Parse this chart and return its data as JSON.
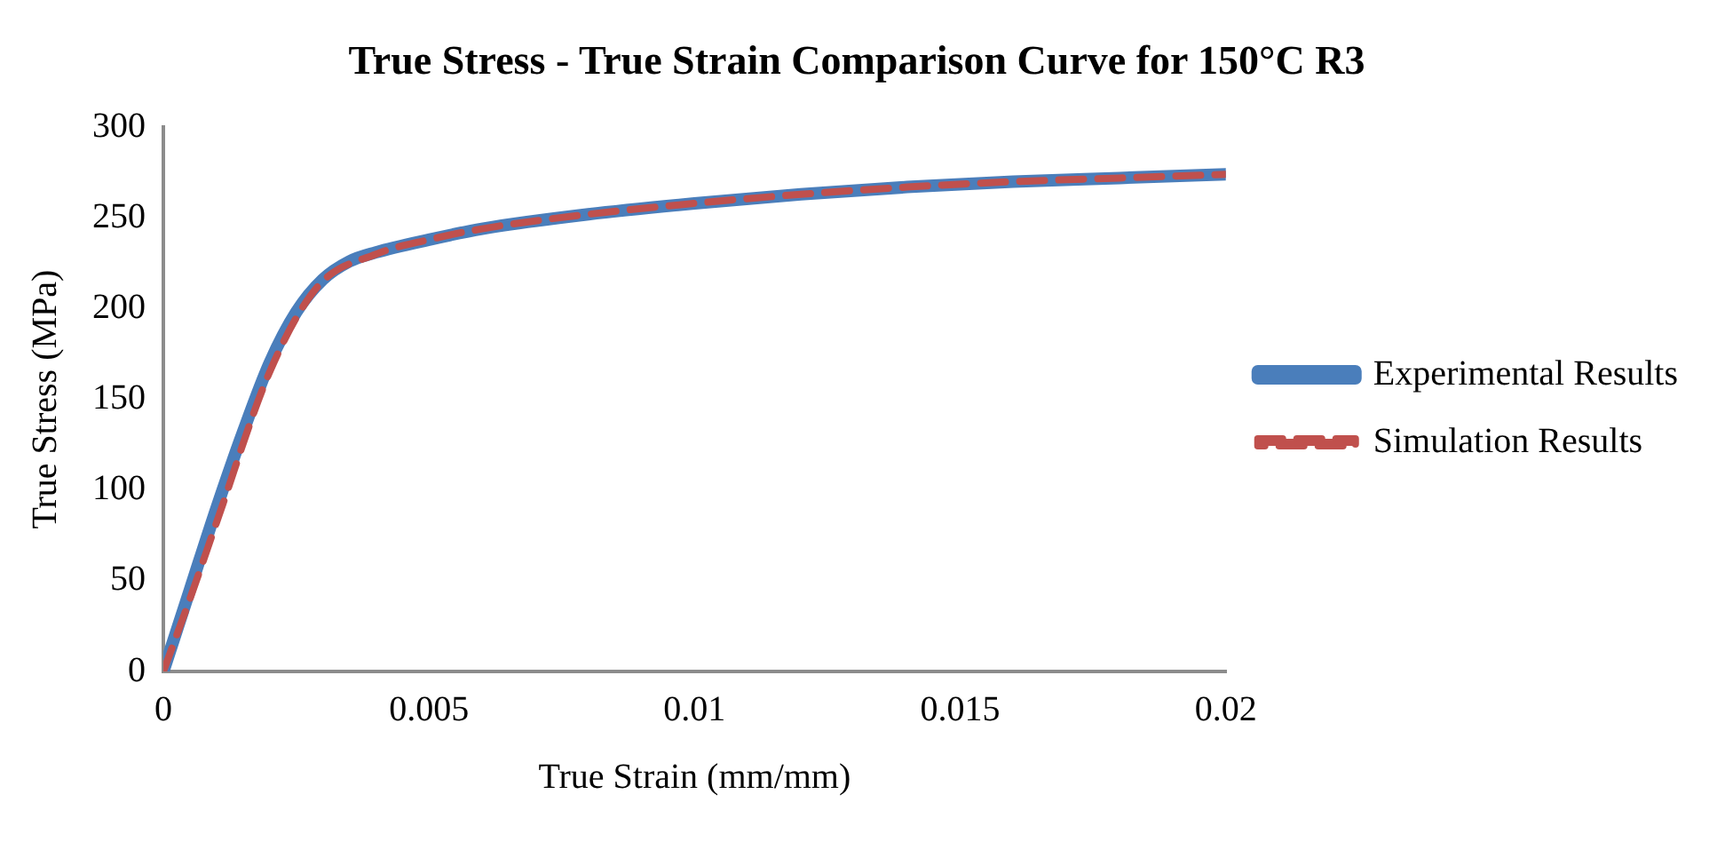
{
  "chart_data": {
    "type": "line",
    "title": "True Stress - True Strain Comparison Curve for 150°C R3",
    "xlabel": "True Strain (mm/mm)",
    "ylabel": "True Stress (MPa)",
    "xlim": [
      0,
      0.02
    ],
    "xticks": [
      0,
      0.005,
      0.01,
      0.015,
      0.02
    ],
    "ylim": [
      0,
      300
    ],
    "yticks": [
      0,
      50,
      100,
      150,
      200,
      250,
      300
    ],
    "grid": false,
    "legend": "right",
    "marker": "none",
    "series": [
      {
        "name": "Experimental Results",
        "color": "#4a7ebb",
        "line_style": "solid",
        "x": [
          0,
          0.0005,
          0.001,
          0.0015,
          0.002,
          0.0025,
          0.003,
          0.0035,
          0.004,
          0.005,
          0.006,
          0.008,
          0.01,
          0.012,
          0.014,
          0.016,
          0.018,
          0.02
        ],
        "values": [
          0,
          45,
          90,
          132,
          170,
          198,
          216,
          226,
          231,
          238,
          244,
          252,
          258,
          263,
          267,
          270,
          272,
          274
        ]
      },
      {
        "name": "Simulation Results",
        "color": "#c0504d",
        "line_style": "dashed",
        "x": [
          0,
          0.0005,
          0.001,
          0.002,
          0.0029,
          0.004,
          0.005,
          0.006,
          0.008,
          0.01,
          0.012,
          0.014,
          0.016,
          0.018,
          0.02
        ],
        "values": [
          0,
          40,
          82,
          165,
          212,
          230,
          238,
          244,
          252,
          258,
          263,
          267,
          270,
          272,
          274
        ]
      }
    ]
  }
}
